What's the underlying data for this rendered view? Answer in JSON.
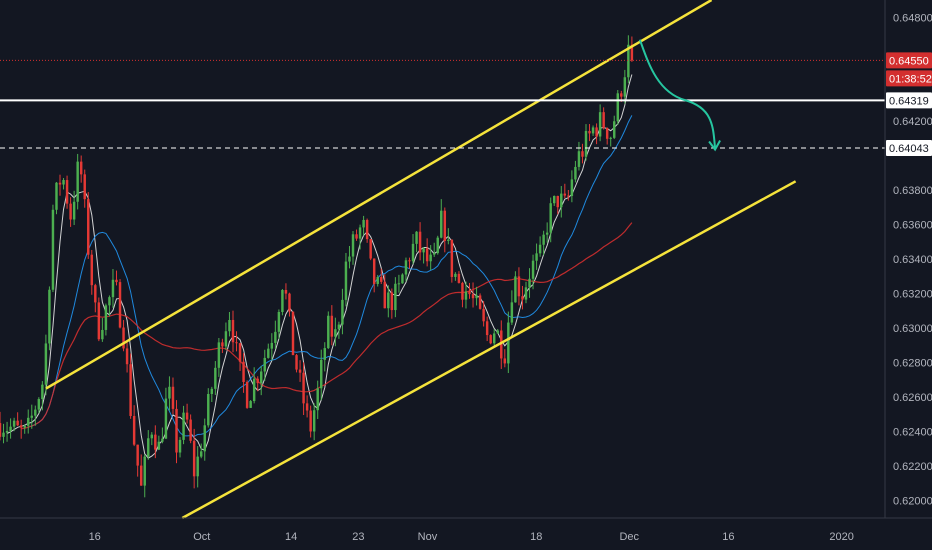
{
  "chart_data": {
    "type": "candlestick",
    "ylim": [
      0.619,
      0.649
    ],
    "xlim": [
      0,
      100
    ],
    "grid": false,
    "colors": {
      "background": "#131722",
      "axis_border": "#363a45",
      "up": "#4caf50",
      "down": "#e53935",
      "ma_fast": "#e8e8e8",
      "ma_medium": "#2196f3",
      "ma_slow": "#d32f2f",
      "channel": "#f5e33b",
      "arrow": "#26c6a0",
      "current_price": "#d32f2f",
      "level_solid": "#ffffff",
      "level_dashed": "#ffffff"
    },
    "y_ticks": [
      {
        "label": "0.64800",
        "value": 0.648
      },
      {
        "label": "0.64200",
        "value": 0.642
      },
      {
        "label": "0.63800",
        "value": 0.638
      },
      {
        "label": "0.63600",
        "value": 0.636
      },
      {
        "label": "0.63400",
        "value": 0.634
      },
      {
        "label": "0.63200",
        "value": 0.632
      },
      {
        "label": "0.63000",
        "value": 0.63
      },
      {
        "label": "0.62800",
        "value": 0.628
      },
      {
        "label": "0.62600",
        "value": 0.626
      },
      {
        "label": "0.62400",
        "value": 0.624
      },
      {
        "label": "0.62200",
        "value": 0.622
      },
      {
        "label": "0.62000",
        "value": 0.62
      }
    ],
    "x_ticks": [
      {
        "label": "16",
        "value": 10.7
      },
      {
        "label": "Oct",
        "value": 22.8
      },
      {
        "label": "14",
        "value": 32.9
      },
      {
        "label": "23",
        "value": 40.5
      },
      {
        "label": "Nov",
        "value": 48.3
      },
      {
        "label": "18",
        "value": 60.6
      },
      {
        "label": "Dec",
        "value": 71.1
      },
      {
        "label": "16",
        "value": 82.3
      },
      {
        "label": "2020",
        "value": 95.1
      }
    ],
    "price_badges": [
      {
        "label": "0.64550",
        "sub": "01:38:52",
        "value": 0.6455,
        "style": "red"
      },
      {
        "label": "0.64319",
        "value": 0.64319,
        "style": "white"
      },
      {
        "label": "0.64043",
        "value": 0.64043,
        "style": "white"
      }
    ],
    "levels": [
      {
        "value": 0.6455,
        "style": "dotted",
        "color": "red"
      },
      {
        "value": 0.64319,
        "style": "solid",
        "color": "white"
      },
      {
        "value": 0.64043,
        "style": "dashed",
        "color": "white"
      }
    ],
    "channel_lines": [
      {
        "x1": 5.2,
        "y1": 0.6265,
        "x2": 80.4,
        "y2": 0.649
      },
      {
        "x1": 20.6,
        "y1": 0.619,
        "x2": 89.9,
        "y2": 0.6385
      }
    ],
    "forecast_arrow": [
      [
        72.3,
        0.6467
      ],
      [
        77.4,
        0.6432
      ],
      [
        80.8,
        0.6404
      ]
    ],
    "anchors": [
      [
        0,
        0.6245
      ],
      [
        3,
        0.6238
      ],
      [
        5,
        0.6272
      ],
      [
        6,
        0.637
      ],
      [
        7,
        0.639
      ],
      [
        8,
        0.6365
      ],
      [
        9,
        0.6398
      ],
      [
        10,
        0.6345
      ],
      [
        11,
        0.6298
      ],
      [
        13,
        0.6325
      ],
      [
        14,
        0.6295
      ],
      [
        15,
        0.624
      ],
      [
        16,
        0.6205
      ],
      [
        17,
        0.6245
      ],
      [
        18,
        0.623
      ],
      [
        19,
        0.6265
      ],
      [
        20,
        0.623
      ],
      [
        21,
        0.625
      ],
      [
        22,
        0.6215
      ],
      [
        23,
        0.624
      ],
      [
        25,
        0.6295
      ],
      [
        26,
        0.631
      ],
      [
        27,
        0.6275
      ],
      [
        28,
        0.626
      ],
      [
        30,
        0.6285
      ],
      [
        31,
        0.63
      ],
      [
        32,
        0.633
      ],
      [
        33,
        0.629
      ],
      [
        34,
        0.6265
      ],
      [
        35,
        0.624
      ],
      [
        36,
        0.6265
      ],
      [
        37,
        0.63
      ],
      [
        38,
        0.6295
      ],
      [
        39,
        0.6335
      ],
      [
        40,
        0.635
      ],
      [
        41,
        0.636
      ],
      [
        42,
        0.633
      ],
      [
        43,
        0.632
      ],
      [
        44,
        0.6315
      ],
      [
        45,
        0.632
      ],
      [
        46,
        0.634
      ],
      [
        47,
        0.635
      ],
      [
        48,
        0.634
      ],
      [
        49,
        0.6335
      ],
      [
        50,
        0.6365
      ],
      [
        51,
        0.6335
      ],
      [
        52,
        0.6325
      ],
      [
        53,
        0.632
      ],
      [
        54,
        0.631
      ],
      [
        55,
        0.6295
      ],
      [
        56,
        0.63
      ],
      [
        57,
        0.6285
      ],
      [
        58,
        0.633
      ],
      [
        59,
        0.632
      ],
      [
        60,
        0.6335
      ],
      [
        61,
        0.634
      ],
      [
        62,
        0.6365
      ],
      [
        63,
        0.6375
      ],
      [
        64,
        0.637
      ],
      [
        65,
        0.6395
      ],
      [
        66,
        0.6405
      ],
      [
        67,
        0.6415
      ],
      [
        68,
        0.642
      ],
      [
        69,
        0.6412
      ],
      [
        70,
        0.6435
      ],
      [
        71,
        0.646
      ]
    ]
  }
}
